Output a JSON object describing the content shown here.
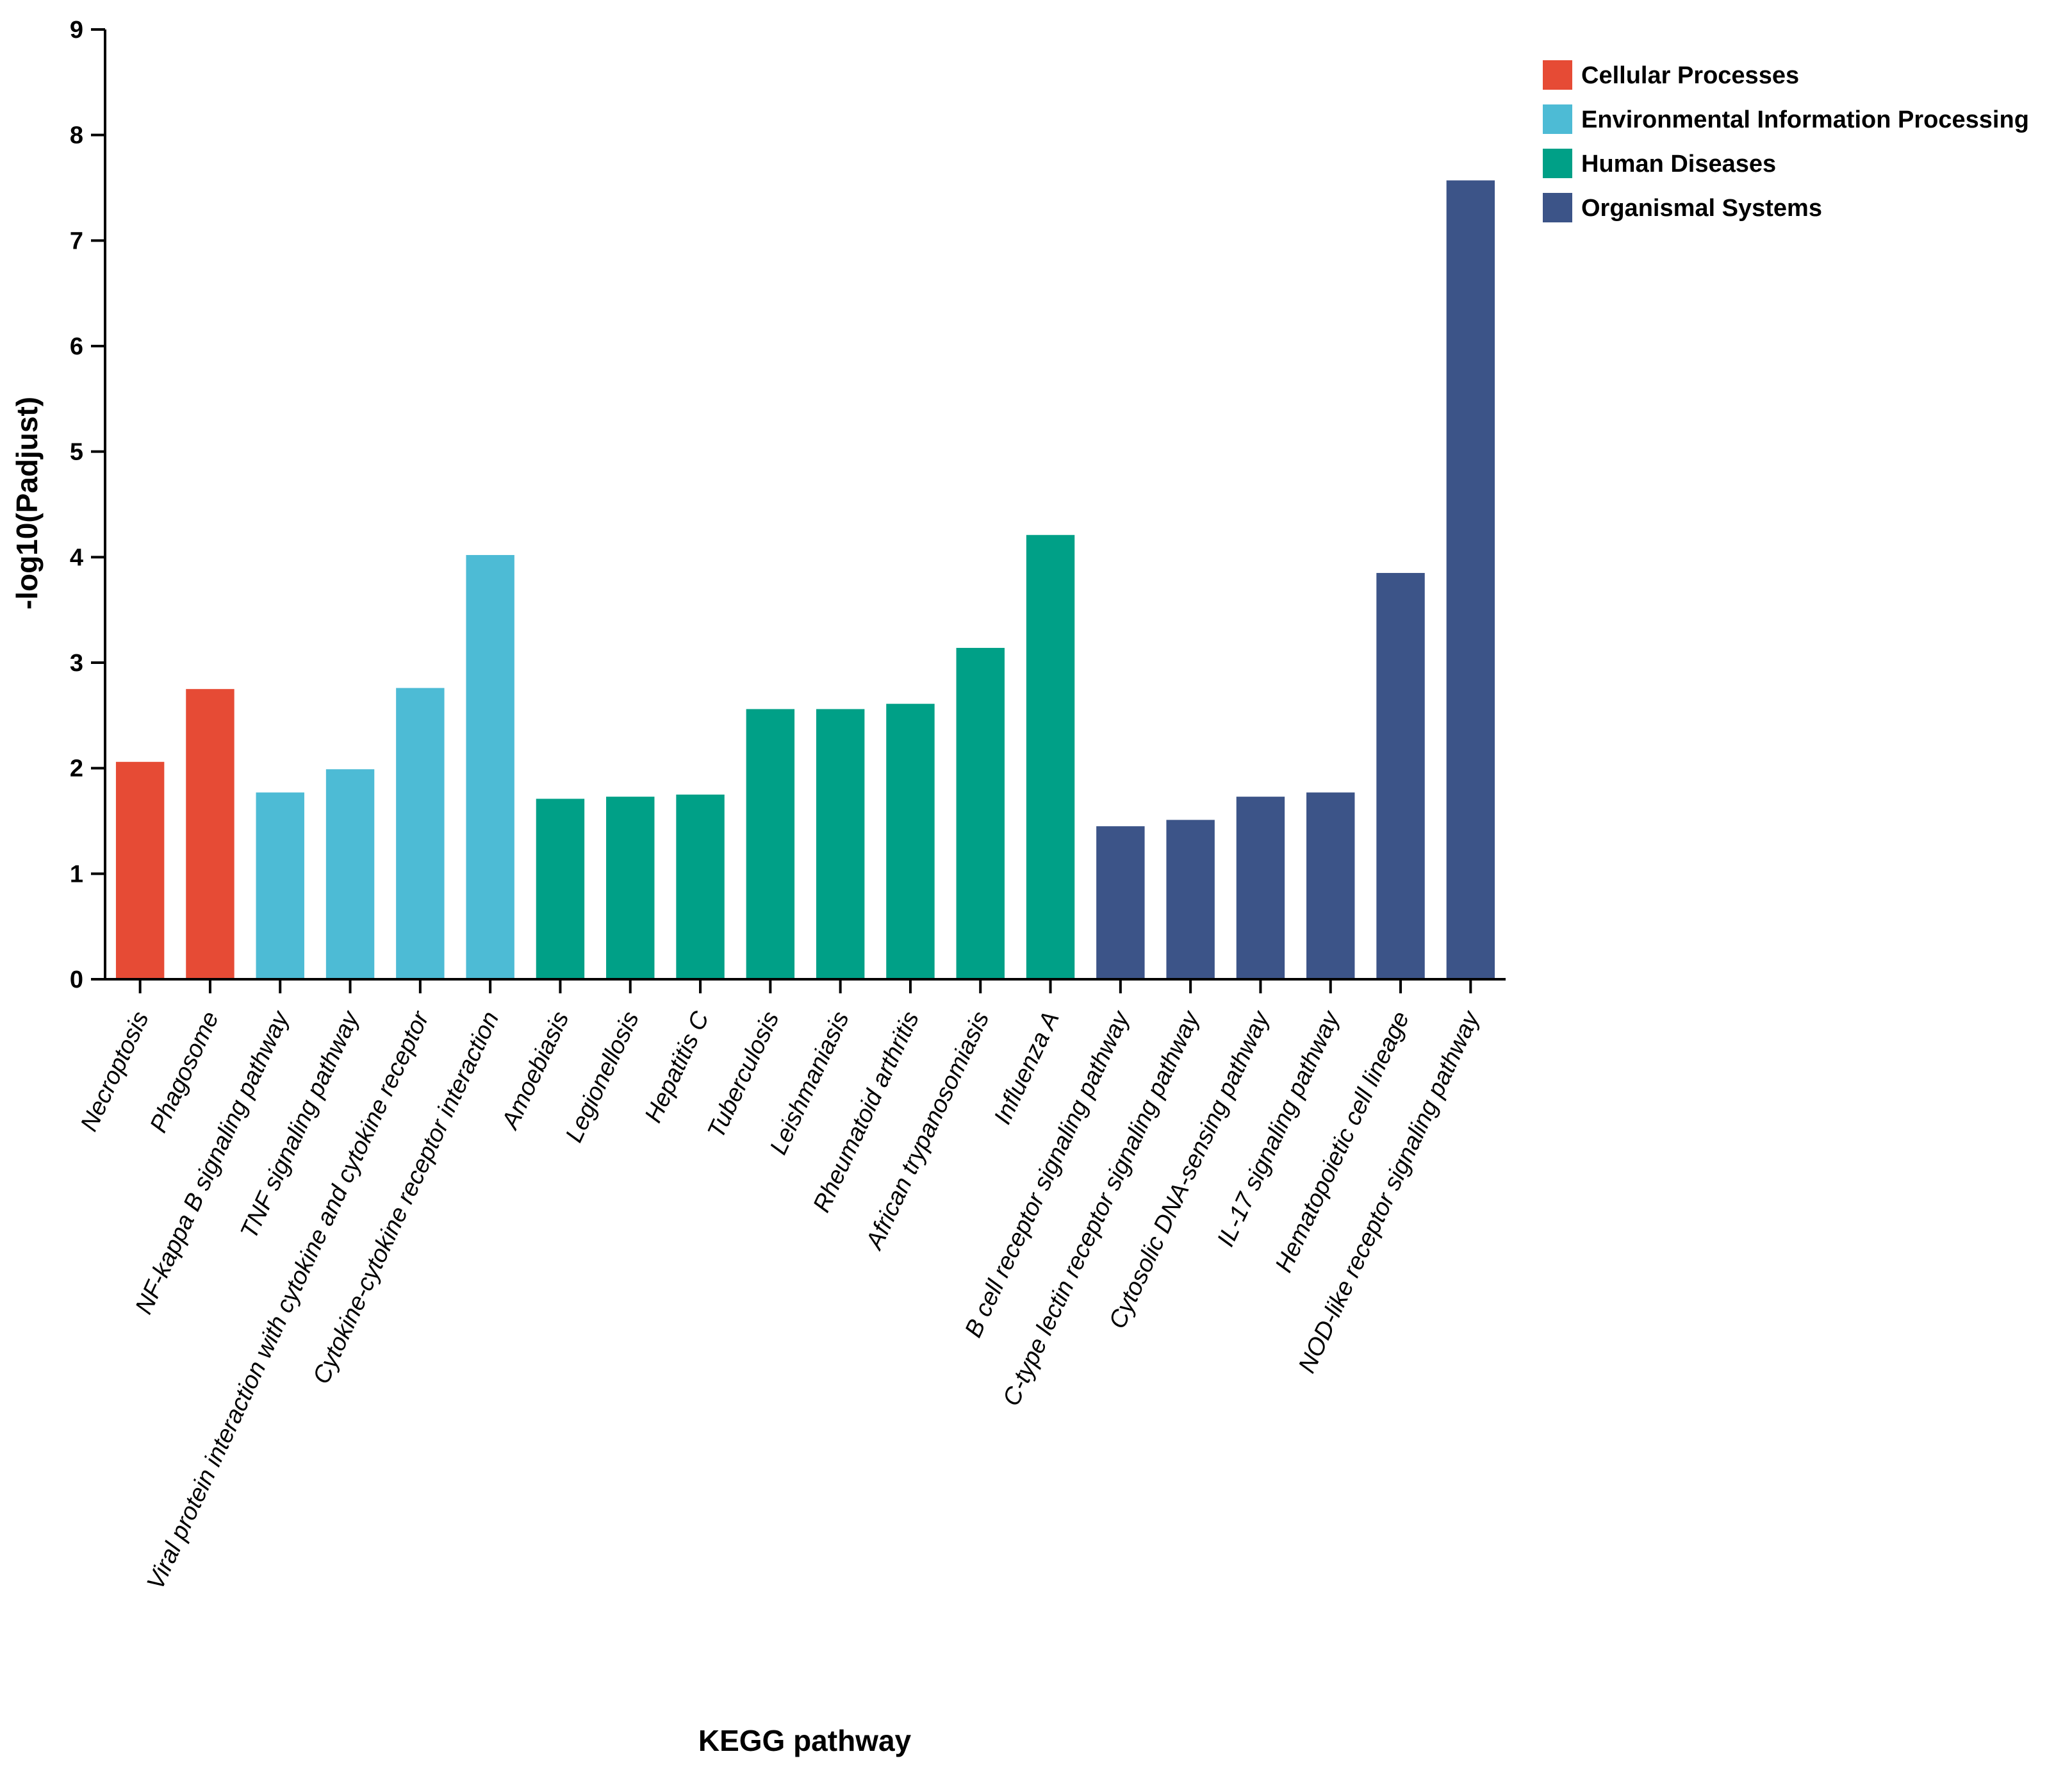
{
  "chart_data": {
    "type": "bar",
    "title": "",
    "xlabel": "KEGG pathway",
    "ylabel": "-log10(Padjust)",
    "ylim": [
      0,
      9
    ],
    "yticks": [
      0,
      1,
      2,
      3,
      4,
      5,
      6,
      7,
      8,
      9
    ],
    "grid": false,
    "legend_position": "top-right",
    "groups": [
      {
        "name": "Cellular Processes",
        "color": "#e64b35"
      },
      {
        "name": "Environmental Information Processing",
        "color": "#4dbbd5"
      },
      {
        "name": "Human Diseases",
        "color": "#00a087"
      },
      {
        "name": "Organismal Systems",
        "color": "#3c5488"
      }
    ],
    "categories": [
      "Necroptosis",
      "Phagosome",
      "NF-kappa B signaling pathway",
      "TNF signaling pathway",
      "Viral protein interaction with cytokine and cytokine receptor",
      "Cytokine-cytokine receptor interaction",
      "Amoebiasis",
      "Legionellosis",
      "Hepatitis C",
      "Tuberculosis",
      "Leishmaniasis",
      "Rheumatoid arthritis",
      "African trypanosomiasis",
      "Influenza A",
      "B cell receptor signaling pathway",
      "C-type lectin receptor signaling pathway",
      "Cytosolic DNA-sensing pathway",
      "IL-17 signaling pathway",
      "Hematopoietic cell lineage",
      "NOD-like receptor signaling pathway"
    ],
    "values": [
      2.06,
      2.75,
      1.77,
      1.99,
      2.76,
      4.02,
      1.71,
      1.73,
      1.75,
      2.56,
      2.56,
      2.61,
      3.14,
      4.21,
      1.45,
      1.51,
      1.73,
      1.77,
      3.85,
      7.57
    ],
    "group_index": [
      0,
      0,
      1,
      1,
      1,
      1,
      2,
      2,
      2,
      2,
      2,
      2,
      2,
      2,
      3,
      3,
      3,
      3,
      3,
      3
    ]
  }
}
